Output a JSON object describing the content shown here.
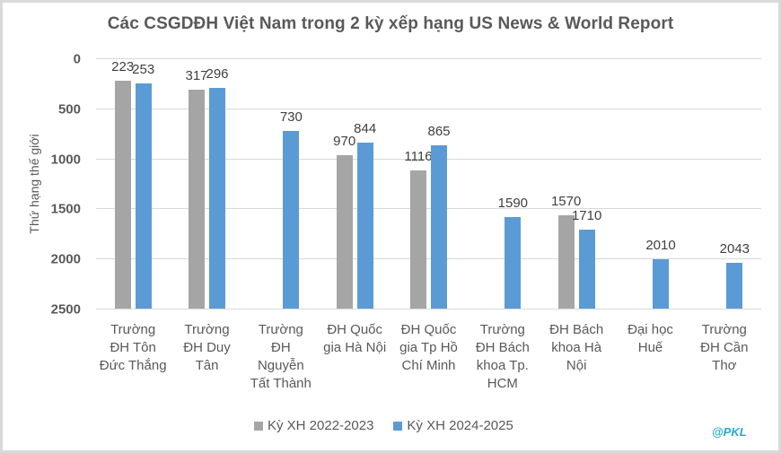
{
  "chart_data": {
    "type": "bar",
    "title": "Các CSGDĐH Việt Nam trong 2 kỳ xếp hạng US News & World Report",
    "xlabel": "",
    "ylabel": "Thứ hạng thế giới",
    "ylim": [
      0,
      2500
    ],
    "y_axis_reversed": true,
    "yticks": [
      "0",
      "500",
      "1000",
      "1500",
      "2000",
      "2500"
    ],
    "grid": true,
    "legend_position": "bottom",
    "categories": [
      "Trường ĐH Tôn Đức Thắng",
      "Trường ĐH Duy Tân",
      "Trường ĐH Nguyễn Tất Thành",
      "ĐH Quốc gia Hà Nội",
      "ĐH Quốc gia Tp Hồ Chí Minh",
      "Trường ĐH Bách khoa Tp. HCM",
      "ĐH Bách khoa Hà Nội",
      "Đại học Huế",
      "Trường ĐH Cần Thơ"
    ],
    "category_lines": [
      [
        "Trường",
        "ĐH Tôn",
        "Đức Thắng"
      ],
      [
        "Trường",
        "ĐH Duy",
        "Tân"
      ],
      [
        "Trường",
        "ĐH",
        "Nguyễn",
        "Tất Thành"
      ],
      [
        "ĐH Quốc",
        "gia Hà Nội"
      ],
      [
        "ĐH Quốc",
        "gia Tp Hồ",
        "Chí Minh"
      ],
      [
        "Trường",
        "ĐH Bách",
        "khoa Tp.",
        "HCM"
      ],
      [
        "ĐH Bách",
        "khoa Hà",
        "Nội"
      ],
      [
        "Đại học",
        "Huế"
      ],
      [
        "Trường",
        "ĐH Cần",
        "Thơ"
      ]
    ],
    "series": [
      {
        "name": "Kỳ XH 2022-2023",
        "color": "#A5A5A5",
        "values": [
          223,
          317,
          null,
          970,
          1116,
          null,
          1570,
          null,
          null
        ]
      },
      {
        "name": "Kỳ XH 2024-2025",
        "color": "#5B9BD5",
        "values": [
          253,
          296,
          730,
          844,
          865,
          1590,
          1710,
          2010,
          2043
        ]
      }
    ]
  },
  "watermark": "@PKL"
}
